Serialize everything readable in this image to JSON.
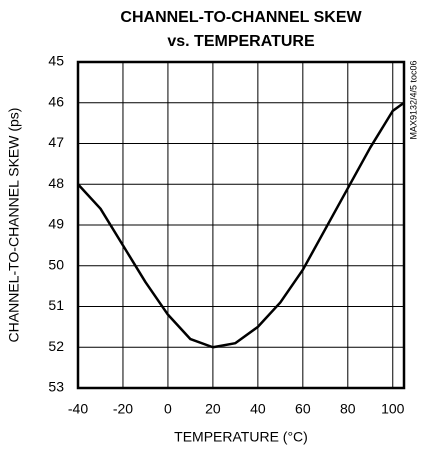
{
  "chart_data": {
    "type": "line",
    "title": [
      "CHANNEL-TO-CHANNEL SKEW",
      "vs. TEMPERATURE"
    ],
    "x_label": "TEMPERATURE (°C)",
    "y_label": "CHANNEL-TO-CHANNEL SKEW (ps)",
    "annotation": "MAX9132/4/5 toc06",
    "x": [
      -40,
      -30,
      -20,
      -10,
      0,
      10,
      20,
      30,
      40,
      50,
      60,
      70,
      80,
      90,
      100,
      105
    ],
    "series": [
      {
        "name": "skew",
        "color": "#000000",
        "values": [
          48.0,
          48.6,
          49.5,
          50.4,
          51.2,
          51.8,
          52.0,
          51.9,
          51.5,
          50.9,
          50.1,
          49.1,
          48.1,
          47.1,
          46.2,
          46.0
        ]
      }
    ],
    "xlim": [
      -40,
      105
    ],
    "xticks": [
      -40,
      -20,
      0,
      20,
      40,
      60,
      80,
      100
    ],
    "ylim": [
      53,
      45
    ],
    "yticks": [
      45,
      46,
      47,
      48,
      49,
      50,
      51,
      52,
      53
    ],
    "grid": true
  }
}
